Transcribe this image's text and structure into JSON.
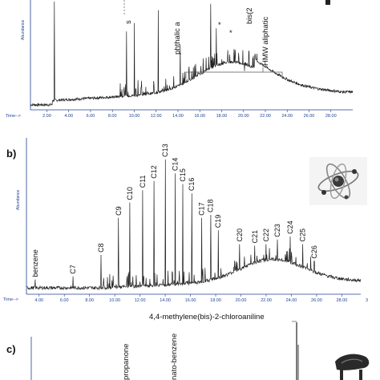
{
  "panels": [
    {
      "id": "a",
      "label": "",
      "ylabel": "Abundance",
      "xlabel": "Time-->",
      "ticks": [
        "2.00",
        "4.00",
        "6.00",
        "8.00",
        "10.00",
        "12.00",
        "14.00",
        "16.00",
        "18.00",
        "20.00",
        "22.00",
        "24.00",
        "26.00",
        "28.00"
      ],
      "annotations": [
        "phthalic a",
        "bis(2",
        "HMW aliphatic",
        "s",
        "*",
        "*"
      ]
    },
    {
      "id": "b",
      "label": "b)",
      "ylabel": "Abundance",
      "xlabel": "Time-->",
      "ticks": [
        "4.00",
        "6.00",
        "8.00",
        "10.00",
        "12.00",
        "14.00",
        "16.00",
        "18.00",
        "20.00",
        "22.00",
        "24.00",
        "26.00",
        "28.00"
      ],
      "corner_mark": "3",
      "peaks": [
        "benzene",
        "C7",
        "C8",
        "C9",
        "C10",
        "C11",
        "C12",
        "C13",
        "C14",
        "C15",
        "C16",
        "C17",
        "C18",
        "C19",
        "C20",
        "C21",
        "C22",
        "C23",
        "C24",
        "C25",
        "C26"
      ]
    },
    {
      "id": "c",
      "label": "c)",
      "title": "4,4-methylene(bis)-2-chloroaniline",
      "annotations": [
        "propanone",
        "nato-benzene"
      ]
    }
  ],
  "chart_data": [
    {
      "type": "line",
      "panel": "a",
      "xlabel": "Time-->",
      "ylabel": "Abundance",
      "xlim": [
        0.5,
        30
      ],
      "peaks": [
        {
          "x": 2.7,
          "y": 100
        },
        {
          "x": 9.3,
          "y": 72
        },
        {
          "x": 10.0,
          "y": 80
        },
        {
          "x": 12.2,
          "y": 92
        },
        {
          "x": 14.2,
          "y": 60
        },
        {
          "x": 17.0,
          "y": 98
        },
        {
          "x": 17.5,
          "y": 75
        },
        {
          "x": 18.6,
          "y": 48
        },
        {
          "x": 20.1,
          "y": 35
        }
      ]
    },
    {
      "type": "line",
      "panel": "b",
      "xlabel": "Time-->",
      "ylabel": "Abundance",
      "xlim": [
        3,
        29.5
      ],
      "peaks": [
        {
          "label": "benzene",
          "x": 3.7,
          "y": 8
        },
        {
          "label": "C7",
          "x": 6.7,
          "y": 10
        },
        {
          "label": "C8",
          "x": 8.9,
          "y": 24
        },
        {
          "label": "C9",
          "x": 10.3,
          "y": 48
        },
        {
          "label": "C10",
          "x": 11.2,
          "y": 58
        },
        {
          "label": "C11",
          "x": 12.2,
          "y": 66
        },
        {
          "label": "C12",
          "x": 13.1,
          "y": 72
        },
        {
          "label": "C13",
          "x": 14.0,
          "y": 86
        },
        {
          "label": "C14",
          "x": 14.8,
          "y": 77
        },
        {
          "label": "C15",
          "x": 15.4,
          "y": 70
        },
        {
          "label": "C16",
          "x": 16.1,
          "y": 64
        },
        {
          "label": "C17",
          "x": 16.9,
          "y": 48
        },
        {
          "label": "C18",
          "x": 17.6,
          "y": 50
        },
        {
          "label": "C19",
          "x": 18.2,
          "y": 40
        },
        {
          "label": "C20",
          "x": 19.9,
          "y": 31
        },
        {
          "label": "C21",
          "x": 21.1,
          "y": 30
        },
        {
          "label": "C22",
          "x": 22.0,
          "y": 31
        },
        {
          "label": "C23",
          "x": 22.9,
          "y": 34
        },
        {
          "label": "C24",
          "x": 23.9,
          "y": 36
        },
        {
          "label": "C25",
          "x": 24.9,
          "y": 31
        },
        {
          "label": "C26",
          "x": 25.8,
          "y": 20
        }
      ]
    }
  ]
}
